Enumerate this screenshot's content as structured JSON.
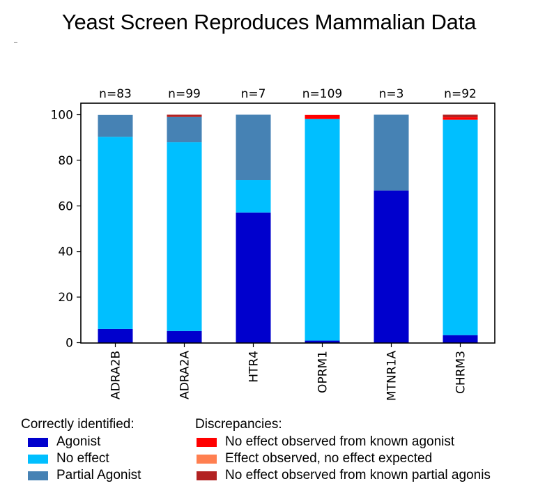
{
  "title": "Yeast Screen Reproduces Mammalian Data",
  "legend": {
    "correct_title": "Correctly identified:",
    "discrepancy_title": "Discrepancies:",
    "correct_items": [
      {
        "label": "Agonist",
        "color": "#0000cd"
      },
      {
        "label": "No effect",
        "color": "#00bfff"
      },
      {
        "label": "Partial Agonist",
        "color": "#4682b4"
      }
    ],
    "discrepancy_items": [
      {
        "label": "No effect observed from known agonist",
        "color": "#ff0000"
      },
      {
        "label": "Effect observed, no effect expected",
        "color": "#ff7f50"
      },
      {
        "label": "No effect observed from known partial agonis",
        "color": "#b22222"
      }
    ]
  },
  "chart_data": {
    "type": "bar",
    "stacked": true,
    "categories": [
      "ADRA2B",
      "ADRA2A",
      "HTR4",
      "OPRM1",
      "MTNR1A",
      "CHRM3"
    ],
    "counts": [
      "n=83",
      "n=99",
      "n=7",
      "n=109",
      "n=3",
      "n=92"
    ],
    "ylim": [
      0,
      100
    ],
    "yticks": [
      0,
      20,
      40,
      60,
      80,
      100
    ],
    "grid": false,
    "series": [
      {
        "name": "Agonist",
        "color": "#0000cd",
        "values": [
          6.0,
          5.1,
          57.1,
          0.9,
          66.7,
          3.3
        ]
      },
      {
        "name": "No effect",
        "color": "#00bfff",
        "values": [
          84.3,
          82.8,
          14.3,
          97.2,
          0.0,
          94.5
        ]
      },
      {
        "name": "Partial Agonist",
        "color": "#4682b4",
        "values": [
          9.6,
          11.1,
          28.6,
          0.0,
          33.3,
          0.0
        ]
      },
      {
        "name": "No effect observed from known agonist",
        "color": "#ff0000",
        "values": [
          0.0,
          0.0,
          0.0,
          1.8,
          0.0,
          1.1
        ]
      },
      {
        "name": "Effect observed, no effect expected",
        "color": "#ff7f50",
        "values": [
          0.0,
          0.0,
          0.0,
          0.0,
          0.0,
          0.0
        ]
      },
      {
        "name": "No effect observed from known partial agonis",
        "color": "#b22222",
        "values": [
          0.0,
          1.0,
          0.0,
          0.0,
          0.0,
          1.1
        ]
      }
    ]
  }
}
